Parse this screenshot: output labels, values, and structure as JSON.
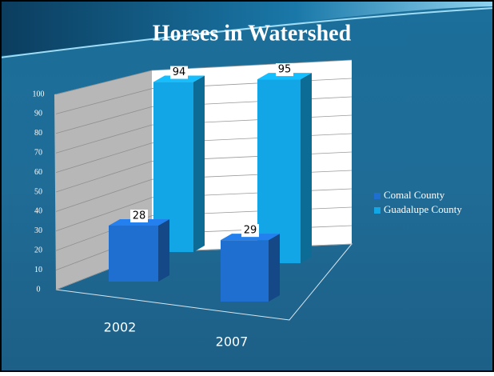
{
  "chart_data": {
    "type": "bar3d",
    "title": "Horses in Watershed",
    "categories": [
      "2002",
      "2007"
    ],
    "series": [
      {
        "name": "Comal County",
        "color": "#1e6fcf",
        "values": [
          28,
          29
        ]
      },
      {
        "name": "Guadalupe County",
        "color": "#12a6e6",
        "values": [
          94,
          95
        ]
      }
    ],
    "ylim": [
      0,
      100
    ],
    "yticks": [
      0,
      10,
      20,
      30,
      40,
      50,
      60,
      70,
      80,
      90,
      100
    ],
    "grid": true,
    "legend": "right"
  }
}
